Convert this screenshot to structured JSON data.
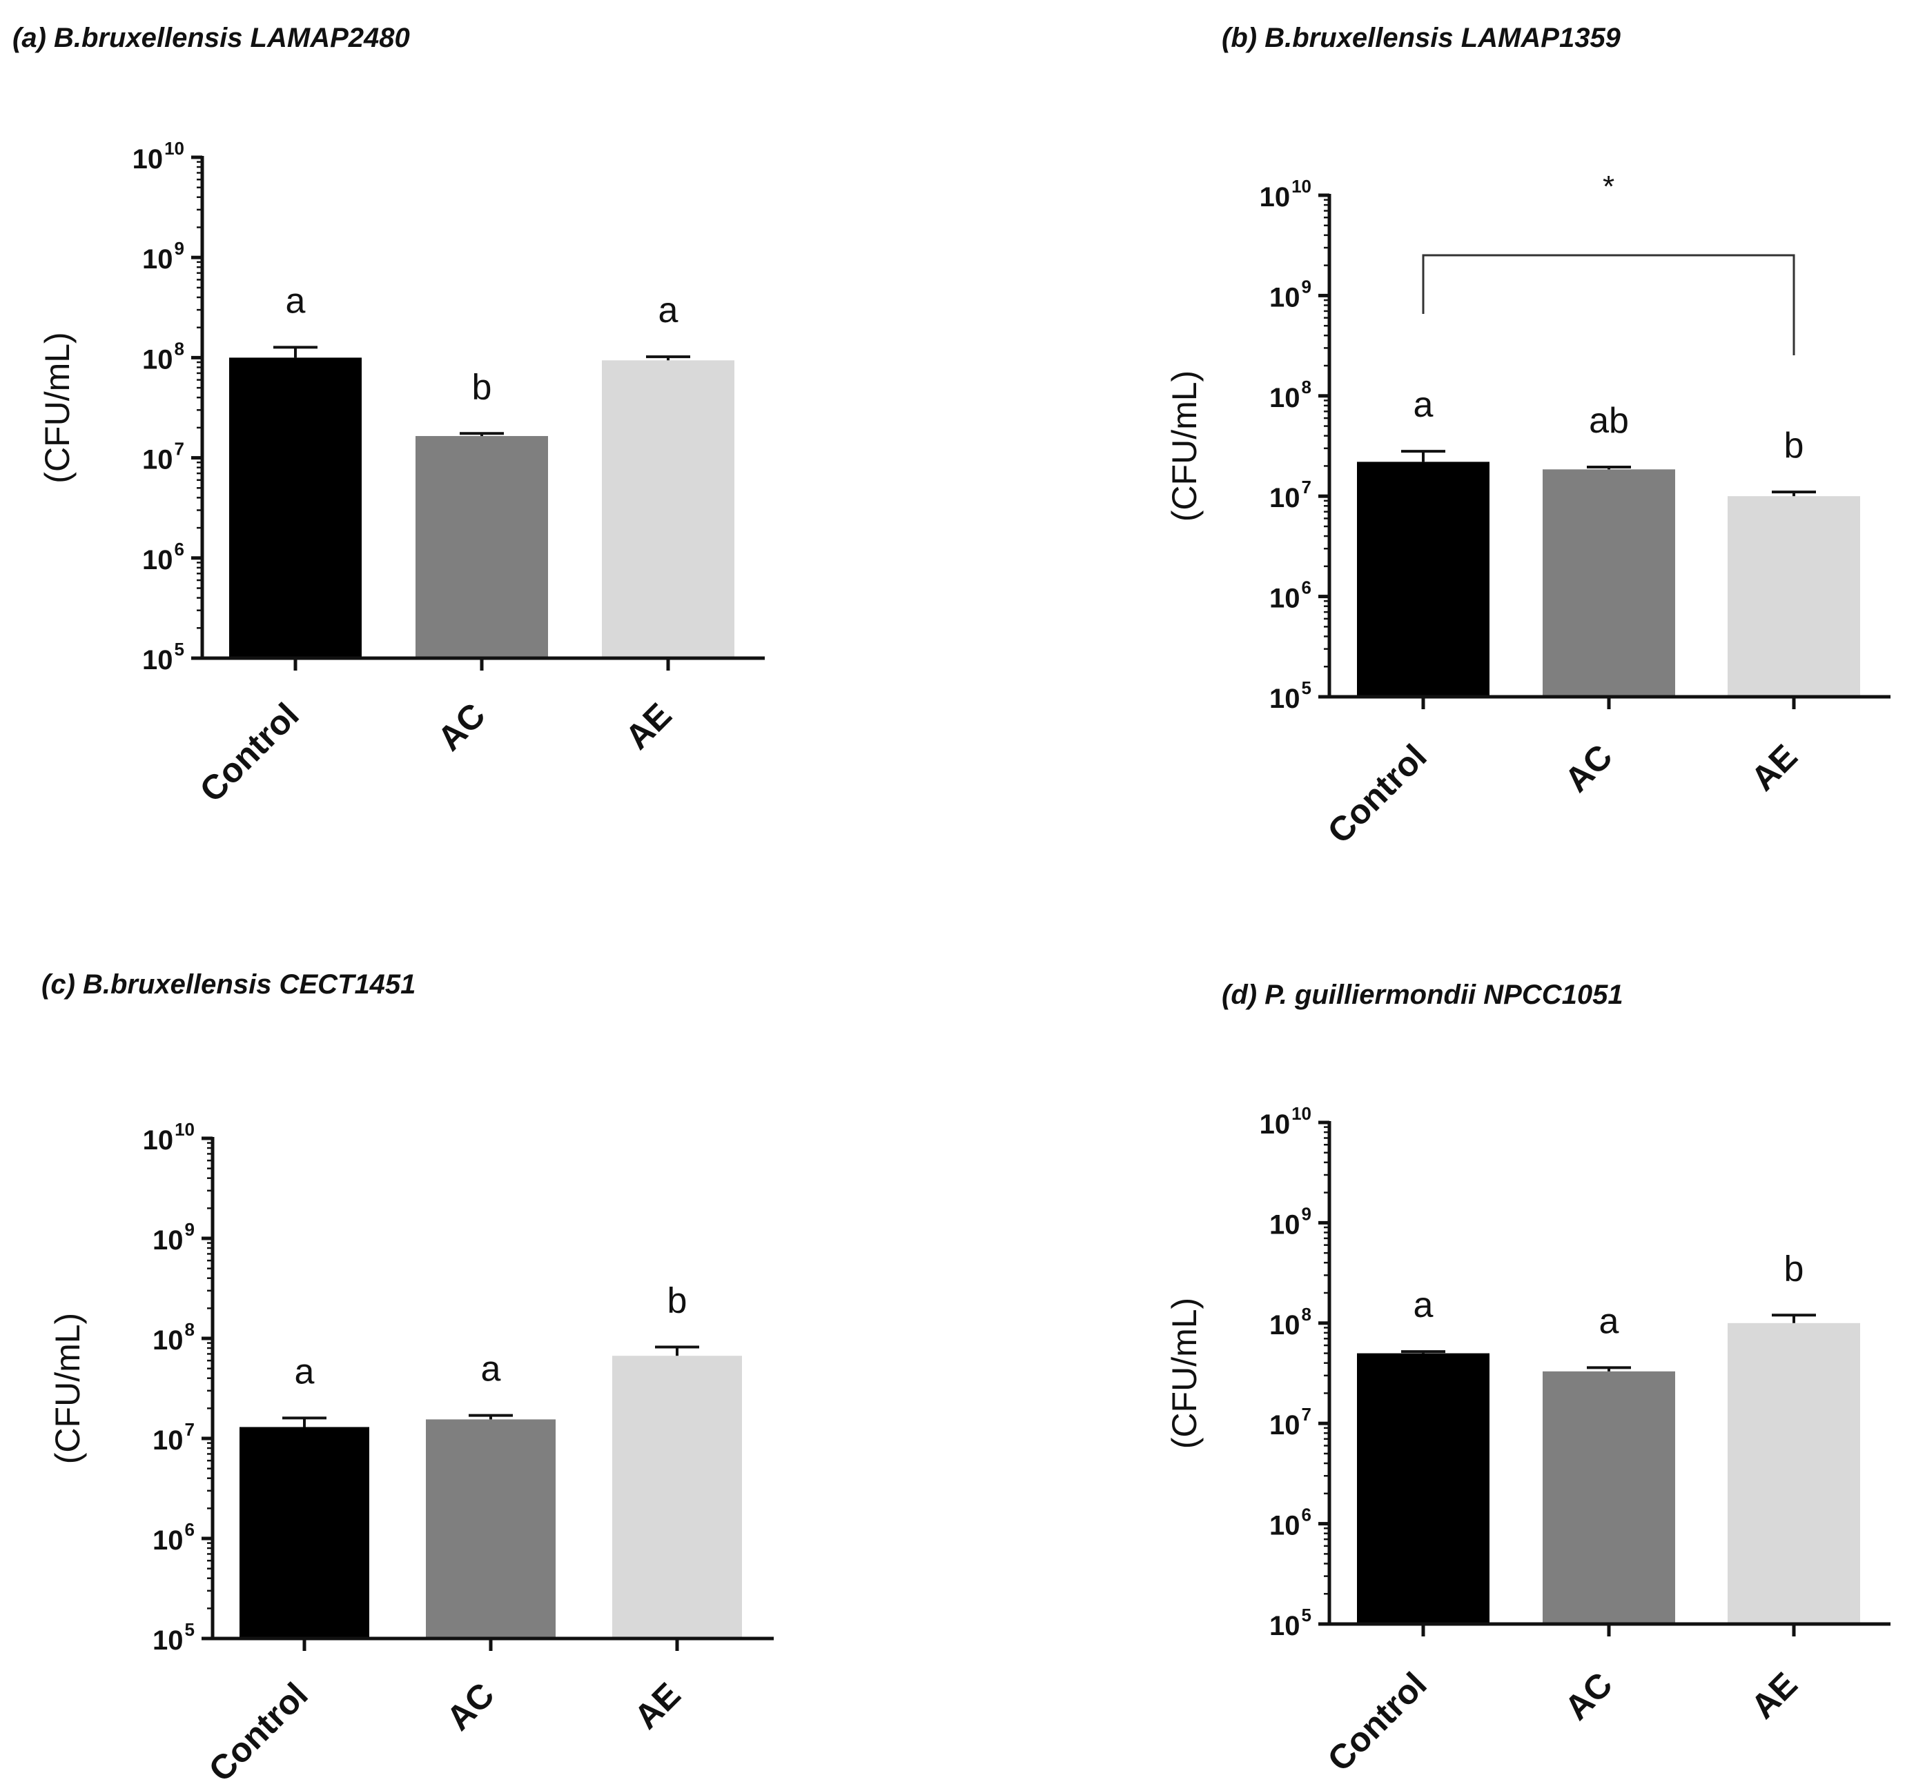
{
  "chart_data": [
    {
      "type": "bar",
      "title": "(a) B.bruxellensis LAMAP2480",
      "ylabel": "(CFU/mL)",
      "yscale": "log",
      "ylim": [
        100000,
        10000000000
      ],
      "yticks": [
        {
          "base": "10",
          "exp": "5"
        },
        {
          "base": "10",
          "exp": "6"
        },
        {
          "base": "10",
          "exp": "7"
        },
        {
          "base": "10",
          "exp": "8"
        },
        {
          "base": "10",
          "exp": "9"
        },
        {
          "base": "10",
          "exp": "10"
        }
      ],
      "categories": [
        "Control",
        "AC",
        "AE"
      ],
      "values": [
        100000000,
        16500000,
        94000000
      ],
      "error_upper": [
        127000000,
        17500000,
        102000000
      ],
      "letters": [
        "a",
        "b",
        "a"
      ],
      "bar_colors": [
        "#000000",
        "#7f7f7f",
        "#d9d9d9"
      ]
    },
    {
      "type": "bar",
      "title": "(b) B.bruxellensis LAMAP1359",
      "ylabel": "(CFU/mL)",
      "yscale": "log",
      "ylim": [
        100000,
        10000000000
      ],
      "yticks": [
        {
          "base": "10",
          "exp": "5"
        },
        {
          "base": "10",
          "exp": "6"
        },
        {
          "base": "10",
          "exp": "7"
        },
        {
          "base": "10",
          "exp": "8"
        },
        {
          "base": "10",
          "exp": "9"
        },
        {
          "base": "10",
          "exp": "10"
        }
      ],
      "categories": [
        "Control",
        "AC",
        "AE"
      ],
      "values": [
        22000000,
        18500000,
        10000000
      ],
      "error_upper": [
        28000000,
        19500000,
        11000000
      ],
      "letters": [
        "a",
        "ab",
        "b"
      ],
      "bar_colors": [
        "#000000",
        "#7f7f7f",
        "#d9d9d9"
      ],
      "bracket": {
        "from": "Control",
        "to": "AE",
        "label": "*"
      }
    },
    {
      "type": "bar",
      "title": "(c) B.bruxellensis CECT1451",
      "ylabel": "(CFU/mL)",
      "yscale": "log",
      "ylim": [
        100000,
        10000000000
      ],
      "yticks": [
        {
          "base": "10",
          "exp": "5"
        },
        {
          "base": "10",
          "exp": "6"
        },
        {
          "base": "10",
          "exp": "7"
        },
        {
          "base": "10",
          "exp": "8"
        },
        {
          "base": "10",
          "exp": "9"
        },
        {
          "base": "10",
          "exp": "10"
        }
      ],
      "categories": [
        "Control",
        "AC",
        "AE"
      ],
      "values": [
        13000000,
        15500000,
        67000000
      ],
      "error_upper": [
        16000000,
        17000000,
        82000000
      ],
      "letters": [
        "a",
        "a",
        "b"
      ],
      "bar_colors": [
        "#000000",
        "#7f7f7f",
        "#d9d9d9"
      ]
    },
    {
      "type": "bar",
      "title": "(d) P. guilliermondii NPCC1051",
      "ylabel": "(CFU/mL)",
      "yscale": "log",
      "ylim": [
        100000,
        10000000000
      ],
      "yticks": [
        {
          "base": "10",
          "exp": "5"
        },
        {
          "base": "10",
          "exp": "6"
        },
        {
          "base": "10",
          "exp": "7"
        },
        {
          "base": "10",
          "exp": "8"
        },
        {
          "base": "10",
          "exp": "9"
        },
        {
          "base": "10",
          "exp": "10"
        }
      ],
      "categories": [
        "Control",
        "AC",
        "AE"
      ],
      "values": [
        50000000,
        33000000,
        100000000
      ],
      "error_upper": [
        52000000,
        36000000,
        120000000
      ],
      "letters": [
        "a",
        "a",
        "b"
      ],
      "bar_colors": [
        "#000000",
        "#7f7f7f",
        "#d9d9d9"
      ]
    }
  ]
}
